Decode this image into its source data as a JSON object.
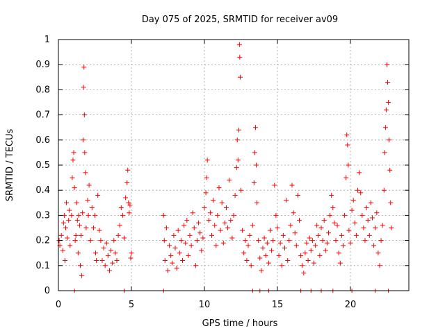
{
  "chart_data": {
    "type": "scatter",
    "title": "Day 075 of 2025, SRMTID for receiver av09",
    "xlabel": "GPS time / hours",
    "ylabel": "SRMTID / TECUs",
    "xlim": [
      0,
      24
    ],
    "ylim": [
      0,
      1
    ],
    "x_ticks": [
      0,
      5,
      10,
      15,
      20
    ],
    "x_tick_labels": [
      "0",
      "5",
      "10",
      "15",
      "20"
    ],
    "y_ticks": [
      0,
      0.1,
      0.2,
      0.3,
      0.4,
      0.5,
      0.6,
      0.7,
      0.8,
      0.9,
      1
    ],
    "y_tick_labels": [
      "0",
      "0.1",
      "0.2",
      "0.3",
      "0.4",
      "0.5",
      "0.6",
      "0.7",
      "0.8",
      "0.9",
      "1"
    ],
    "grid": true,
    "marker": "plus",
    "color": "#ff0000",
    "series": [
      {
        "name": "SRMTID",
        "points": [
          [
            0.05,
            0.2
          ],
          [
            0.1,
            0.18
          ],
          [
            0.2,
            0.22
          ],
          [
            0.3,
            0.16
          ],
          [
            0.35,
            0.27
          ],
          [
            0.4,
            0.3
          ],
          [
            0.45,
            0.12
          ],
          [
            0.5,
            0.25
          ],
          [
            0.55,
            0.35
          ],
          [
            0.6,
            0.21
          ],
          [
            0.7,
            0.28
          ],
          [
            0.75,
            0.32
          ],
          [
            0.8,
            0.18
          ],
          [
            0.9,
            0.3
          ],
          [
            0.95,
            0.45
          ],
          [
            1.0,
            0.52
          ],
          [
            1.05,
            0.55
          ],
          [
            1.1,
            0.41
          ],
          [
            1.15,
            0.2
          ],
          [
            1.2,
            0.22
          ],
          [
            1.25,
            0.35
          ],
          [
            1.3,
            0.28
          ],
          [
            1.35,
            0.15
          ],
          [
            1.4,
            0.3
          ],
          [
            1.45,
            0.26
          ],
          [
            1.5,
            0.1
          ],
          [
            1.55,
            0.22
          ],
          [
            1.6,
            0.06
          ],
          [
            1.65,
            0.31
          ],
          [
            1.7,
            0.6
          ],
          [
            1.72,
            0.81
          ],
          [
            1.75,
            0.89
          ],
          [
            1.78,
            0.7
          ],
          [
            1.8,
            0.55
          ],
          [
            1.85,
            0.47
          ],
          [
            1.9,
            0.25
          ],
          [
            2.0,
            0.36
          ],
          [
            2.05,
            0.3
          ],
          [
            2.1,
            0.42
          ],
          [
            2.2,
            0.2
          ],
          [
            2.3,
            0.33
          ],
          [
            2.4,
            0.25
          ],
          [
            2.5,
            0.3
          ],
          [
            2.55,
            0.15
          ],
          [
            2.6,
            0.12
          ],
          [
            2.7,
            0.38
          ],
          [
            2.8,
            0.24
          ],
          [
            2.9,
            0.2
          ],
          [
            3.0,
            0.12
          ],
          [
            3.1,
            0.17
          ],
          [
            3.2,
            0.1
          ],
          [
            3.3,
            0.19
          ],
          [
            3.4,
            0.14
          ],
          [
            3.5,
            0.08
          ],
          [
            3.6,
            0.16
          ],
          [
            3.7,
            0.11
          ],
          [
            3.8,
            0.2
          ],
          [
            3.9,
            0.15
          ],
          [
            4.0,
            0.12
          ],
          [
            4.1,
            0.22
          ],
          [
            4.2,
            0.26
          ],
          [
            4.3,
            0.33
          ],
          [
            4.4,
            0.3
          ],
          [
            4.5,
            0.21
          ],
          [
            4.6,
            0.37
          ],
          [
            4.7,
            0.43
          ],
          [
            4.75,
            0.48
          ],
          [
            4.8,
            0.35
          ],
          [
            4.85,
            0.31
          ],
          [
            4.9,
            0.34
          ],
          [
            4.95,
            0.13
          ],
          [
            5.0,
            0.15
          ],
          [
            7.2,
            0.3
          ],
          [
            7.25,
            0.2
          ],
          [
            7.3,
            0.12
          ],
          [
            7.4,
            0.25
          ],
          [
            7.5,
            0.08
          ],
          [
            7.6,
            0.18
          ],
          [
            7.7,
            0.14
          ],
          [
            7.8,
            0.11
          ],
          [
            7.9,
            0.22
          ],
          [
            8.0,
            0.17
          ],
          [
            8.1,
            0.09
          ],
          [
            8.2,
            0.24
          ],
          [
            8.3,
            0.15
          ],
          [
            8.4,
            0.2
          ],
          [
            8.5,
            0.12
          ],
          [
            8.6,
            0.26
          ],
          [
            8.7,
            0.19
          ],
          [
            8.8,
            0.28
          ],
          [
            8.9,
            0.14
          ],
          [
            9.0,
            0.22
          ],
          [
            9.1,
            0.18
          ],
          [
            9.2,
            0.31
          ],
          [
            9.3,
            0.25
          ],
          [
            9.4,
            0.1
          ],
          [
            9.5,
            0.2
          ],
          [
            9.6,
            0.27
          ],
          [
            9.7,
            0.23
          ],
          [
            9.8,
            0.16
          ],
          [
            9.9,
            0.21
          ],
          [
            10.0,
            0.33
          ],
          [
            10.1,
            0.39
          ],
          [
            10.15,
            0.45
          ],
          [
            10.2,
            0.52
          ],
          [
            10.3,
            0.28
          ],
          [
            10.4,
            0.31
          ],
          [
            10.5,
            0.22
          ],
          [
            10.6,
            0.36
          ],
          [
            10.7,
            0.26
          ],
          [
            10.8,
            0.18
          ],
          [
            10.9,
            0.3
          ],
          [
            11.0,
            0.41
          ],
          [
            11.1,
            0.24
          ],
          [
            11.2,
            0.35
          ],
          [
            11.3,
            0.19
          ],
          [
            11.4,
            0.27
          ],
          [
            11.5,
            0.33
          ],
          [
            11.6,
            0.25
          ],
          [
            11.7,
            0.44
          ],
          [
            11.8,
            0.28
          ],
          [
            11.9,
            0.21
          ],
          [
            12.0,
            0.3
          ],
          [
            12.1,
            0.38
          ],
          [
            12.2,
            0.49
          ],
          [
            12.25,
            0.6
          ],
          [
            12.3,
            0.52
          ],
          [
            12.35,
            0.64
          ],
          [
            12.4,
            0.98
          ],
          [
            12.42,
            0.93
          ],
          [
            12.45,
            0.85
          ],
          [
            12.5,
            0.4
          ],
          [
            12.6,
            0.24
          ],
          [
            12.7,
            0.15
          ],
          [
            12.8,
            0.2
          ],
          [
            12.9,
            0.12
          ],
          [
            13.0,
            0.18
          ],
          [
            13.1,
            0.22
          ],
          [
            13.2,
            0.1
          ],
          [
            13.3,
            0.26
          ],
          [
            13.4,
            0.43
          ],
          [
            13.45,
            0.55
          ],
          [
            13.5,
            0.65
          ],
          [
            13.55,
            0.5
          ],
          [
            13.6,
            0.35
          ],
          [
            13.7,
            0.2
          ],
          [
            13.8,
            0.13
          ],
          [
            13.9,
            0.08
          ],
          [
            14.0,
            0.17
          ],
          [
            14.1,
            0.21
          ],
          [
            14.2,
            0.14
          ],
          [
            14.3,
            0.19
          ],
          [
            14.4,
            0.11
          ],
          [
            14.5,
            0.24
          ],
          [
            14.6,
            0.16
          ],
          [
            14.7,
            0.2
          ],
          [
            14.8,
            0.42
          ],
          [
            14.9,
            0.3
          ],
          [
            15.0,
            0.25
          ],
          [
            15.1,
            0.14
          ],
          [
            15.2,
            0.19
          ],
          [
            15.3,
            0.1
          ],
          [
            15.4,
            0.22
          ],
          [
            15.5,
            0.17
          ],
          [
            15.6,
            0.36
          ],
          [
            15.7,
            0.12
          ],
          [
            15.8,
            0.2
          ],
          [
            15.9,
            0.26
          ],
          [
            16.0,
            0.42
          ],
          [
            16.1,
            0.31
          ],
          [
            16.2,
            0.23
          ],
          [
            16.3,
            0.18
          ],
          [
            16.4,
            0.38
          ],
          [
            16.5,
            0.28
          ],
          [
            16.6,
            0.14
          ],
          [
            16.7,
            0.1
          ],
          [
            16.8,
            0.07
          ],
          [
            16.9,
            0.15
          ],
          [
            17.0,
            0.19
          ],
          [
            17.1,
            0.12
          ],
          [
            17.2,
            0.21
          ],
          [
            17.3,
            0.16
          ],
          [
            17.4,
            0.2
          ],
          [
            17.5,
            0.11
          ],
          [
            17.6,
            0.18
          ],
          [
            17.7,
            0.26
          ],
          [
            17.8,
            0.22
          ],
          [
            17.9,
            0.14
          ],
          [
            18.0,
            0.25
          ],
          [
            18.1,
            0.2
          ],
          [
            18.2,
            0.28
          ],
          [
            18.3,
            0.16
          ],
          [
            18.4,
            0.19
          ],
          [
            18.5,
            0.23
          ],
          [
            18.6,
            0.3
          ],
          [
            18.7,
            0.38
          ],
          [
            18.8,
            0.33
          ],
          [
            18.9,
            0.27
          ],
          [
            19.0,
            0.2
          ],
          [
            19.1,
            0.26
          ],
          [
            19.2,
            0.15
          ],
          [
            19.3,
            0.11
          ],
          [
            19.4,
            0.22
          ],
          [
            19.5,
            0.18
          ],
          [
            19.6,
            0.3
          ],
          [
            19.7,
            0.45
          ],
          [
            19.75,
            0.62
          ],
          [
            19.8,
            0.58
          ],
          [
            19.85,
            0.5
          ],
          [
            19.9,
            0.24
          ],
          [
            20.0,
            0.19
          ],
          [
            20.1,
            0.32
          ],
          [
            20.2,
            0.36
          ],
          [
            20.3,
            0.27
          ],
          [
            20.4,
            0.22
          ],
          [
            20.5,
            0.4
          ],
          [
            20.6,
            0.47
          ],
          [
            20.7,
            0.39
          ],
          [
            20.8,
            0.3
          ],
          [
            20.9,
            0.25
          ],
          [
            21.0,
            0.2
          ],
          [
            21.1,
            0.33
          ],
          [
            21.2,
            0.28
          ],
          [
            21.3,
            0.22
          ],
          [
            21.4,
            0.35
          ],
          [
            21.5,
            0.29
          ],
          [
            21.6,
            0.18
          ],
          [
            21.7,
            0.25
          ],
          [
            21.8,
            0.31
          ],
          [
            21.9,
            0.15
          ],
          [
            22.0,
            0.1
          ],
          [
            22.1,
            0.2
          ],
          [
            22.2,
            0.26
          ],
          [
            22.3,
            0.4
          ],
          [
            22.35,
            0.55
          ],
          [
            22.4,
            0.65
          ],
          [
            22.45,
            0.72
          ],
          [
            22.5,
            0.9
          ],
          [
            22.55,
            0.83
          ],
          [
            22.6,
            0.75
          ],
          [
            22.65,
            0.6
          ],
          [
            22.7,
            0.48
          ],
          [
            22.75,
            0.35
          ],
          [
            22.8,
            0.25
          ]
        ]
      }
    ],
    "gap_markers_x": [
      1.1,
      4.5,
      7.2,
      13.3,
      13.8,
      14.4,
      16.6,
      17.3,
      18.0,
      18.8,
      20.1,
      21.7,
      22.6
    ]
  }
}
